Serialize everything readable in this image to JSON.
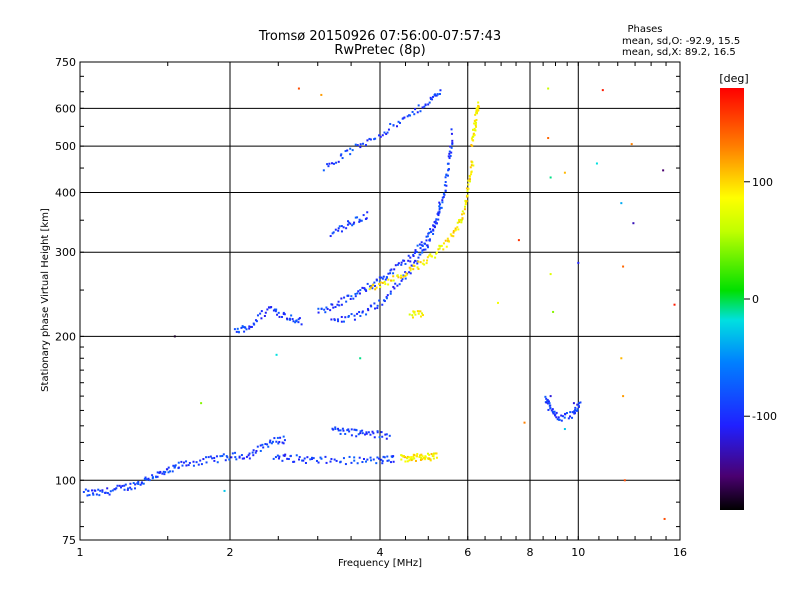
{
  "chart_data": {
    "type": "scatter",
    "title": "Tromsø 20150926 07:56:00-07:57:43",
    "subtitle": "RwPretec (8p)",
    "xlabel": "Frequency [MHz]",
    "ylabel": "Stationary phase Virtual Height [km]",
    "x_scale": "log",
    "y_scale": "log",
    "xlim": [
      1,
      16
    ],
    "ylim": [
      75,
      750
    ],
    "x_ticks": [
      "1",
      "2",
      "4",
      "6",
      "8",
      "10",
      "16"
    ],
    "x_tick_values": [
      1,
      2,
      4,
      6,
      8,
      10,
      16
    ],
    "y_ticks": [
      "75",
      "100",
      "200",
      "300",
      "400",
      "500",
      "600",
      "750"
    ],
    "y_tick_values": [
      75,
      100,
      200,
      300,
      400,
      500,
      600,
      750
    ],
    "grid": true,
    "stats": {
      "heading": "Phases",
      "line_o": "mean, sd,O:  -92.9, 15.5",
      "line_x": "mean, sd,X:   89.2, 16.5"
    },
    "colorbar": {
      "label": "[deg]",
      "range": [
        -180,
        180
      ],
      "ticks": [
        "100",
        "0",
        "-100"
      ],
      "tick_values": [
        100,
        0,
        -100
      ]
    },
    "series": [
      {
        "name": "O-mode",
        "phase_deg": -92.9,
        "segments": [
          {
            "f": [
              1.02,
              1.1,
              1.2,
              1.3,
              1.4,
              1.5,
              1.6,
              1.8,
              2.0,
              2.2,
              2.4,
              2.6
            ],
            "h": [
              94,
              94,
              96,
              98,
              102,
              104,
              108,
              110,
              112,
              113,
              120,
              122
            ]
          },
          {
            "f": [
              2.45,
              2.7,
              3.0,
              3.5,
              4.0,
              4.3
            ],
            "h": [
              112,
              111,
              110,
              110,
              110,
              111
            ]
          },
          {
            "f": [
              2.05,
              2.2,
              2.4,
              2.6,
              2.8
            ],
            "h": [
              205,
              210,
              230,
              220,
              215
            ]
          },
          {
            "f": [
              3.0,
              3.3,
              3.6,
              3.9,
              4.2,
              4.6,
              4.9,
              5.2,
              5.4,
              5.5,
              5.6
            ],
            "h": [
              225,
              235,
              245,
              258,
              272,
              292,
              315,
              350,
              400,
              460,
              540
            ]
          },
          {
            "f": [
              3.1,
              3.5,
              4.0,
              4.5,
              5.0,
              5.3
            ],
            "h": [
              450,
              490,
              530,
              570,
              620,
              650
            ]
          },
          {
            "f": [
              3.2,
              3.5,
              3.8
            ],
            "h": [
              330,
              345,
              360
            ]
          },
          {
            "f": [
              3.2,
              3.6,
              4.0,
              4.4,
              4.8,
              5.1,
              5.3
            ],
            "h": [
              215,
              220,
              235,
              260,
              290,
              330,
              380
            ]
          },
          {
            "f": [
              3.2,
              3.5,
              3.8,
              4.2
            ],
            "h": [
              128,
              126,
              125,
              124
            ]
          },
          {
            "f": [
              8.6,
              8.8,
              9.2,
              9.8,
              10.1
            ],
            "h": [
              150,
              140,
              135,
              138,
              145
            ]
          }
        ]
      },
      {
        "name": "X-mode",
        "phase_deg": 89.2,
        "segments": [
          {
            "f": [
              3.8,
              4.2,
              4.6,
              5.0,
              5.4,
              5.7,
              5.9,
              6.05,
              6.15
            ],
            "h": [
              252,
              262,
              275,
              290,
              310,
              335,
              370,
              420,
              470
            ]
          },
          {
            "f": [
              6.1,
              6.2,
              6.25,
              6.3
            ],
            "h": [
              500,
              550,
              590,
              610
            ]
          },
          {
            "f": [
              4.4,
              4.6,
              4.8,
              5.0,
              5.2
            ],
            "h": [
              111,
              111,
              112,
              112,
              112
            ]
          },
          {
            "f": [
              4.6,
              4.9
            ],
            "h": [
              222,
              222
            ]
          }
        ]
      }
    ],
    "scattered_points": [
      {
        "f": 2.75,
        "h": 660,
        "phase": 150
      },
      {
        "f": 3.05,
        "h": 640,
        "phase": 120
      },
      {
        "f": 8.7,
        "h": 660,
        "phase": 60
      },
      {
        "f": 8.7,
        "h": 520,
        "phase": 140
      },
      {
        "f": 11.2,
        "h": 655,
        "phase": 170
      },
      {
        "f": 12.8,
        "h": 505,
        "phase": 130
      },
      {
        "f": 10.9,
        "h": 460,
        "phase": -20
      },
      {
        "f": 8.8,
        "h": 430,
        "phase": -10
      },
      {
        "f": 14.8,
        "h": 445,
        "phase": -150
      },
      {
        "f": 9.4,
        "h": 440,
        "phase": 110
      },
      {
        "f": 12.2,
        "h": 380,
        "phase": -40
      },
      {
        "f": 12.9,
        "h": 345,
        "phase": -130
      },
      {
        "f": 7.6,
        "h": 318,
        "phase": 160
      },
      {
        "f": 10.0,
        "h": 285,
        "phase": -110
      },
      {
        "f": 12.3,
        "h": 280,
        "phase": 140
      },
      {
        "f": 8.8,
        "h": 270,
        "phase": 70
      },
      {
        "f": 6.9,
        "h": 235,
        "phase": 80
      },
      {
        "f": 15.6,
        "h": 233,
        "phase": 170
      },
      {
        "f": 8.9,
        "h": 225,
        "phase": 40
      },
      {
        "f": 1.55,
        "h": 200,
        "phase": -170
      },
      {
        "f": 2.48,
        "h": 183,
        "phase": -20
      },
      {
        "f": 3.65,
        "h": 180,
        "phase": -10
      },
      {
        "f": 1.75,
        "h": 145,
        "phase": 40
      },
      {
        "f": 8.8,
        "h": 150,
        "phase": -120
      },
      {
        "f": 9.8,
        "h": 145,
        "phase": -120
      },
      {
        "f": 12.2,
        "h": 180,
        "phase": 110
      },
      {
        "f": 12.3,
        "h": 150,
        "phase": 120
      },
      {
        "f": 7.8,
        "h": 132,
        "phase": 130
      },
      {
        "f": 9.4,
        "h": 128,
        "phase": -30
      },
      {
        "f": 12.4,
        "h": 100,
        "phase": 150
      },
      {
        "f": 14.9,
        "h": 83,
        "phase": 150
      },
      {
        "f": 1.95,
        "h": 95,
        "phase": -30
      }
    ]
  }
}
